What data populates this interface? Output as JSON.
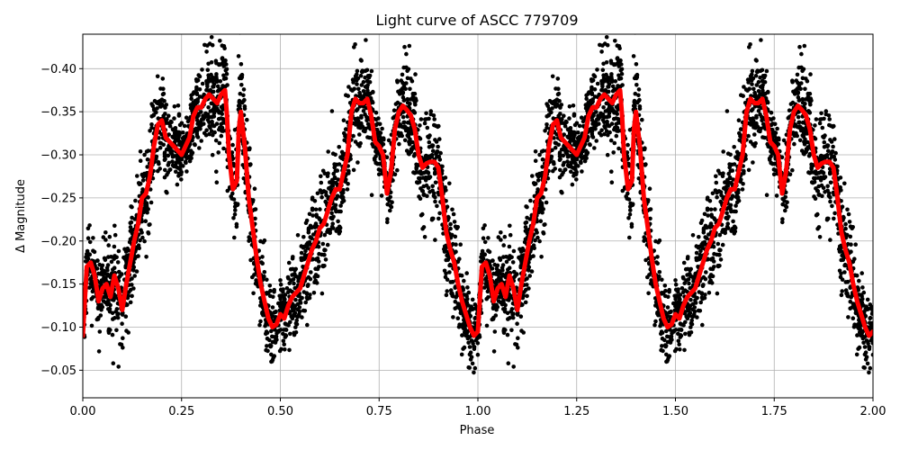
{
  "chart_data": {
    "type": "scatter",
    "title": "Light curve of ASCC 779709",
    "xlabel": "Phase",
    "ylabel": "Δ Magnitude",
    "xlim": [
      0.0,
      2.0
    ],
    "ylim": [
      -0.018,
      -0.44
    ],
    "y_inverted": true,
    "grid": true,
    "x_ticks": [
      "0.00",
      "0.25",
      "0.50",
      "0.75",
      "1.00",
      "1.25",
      "1.50",
      "1.75",
      "2.00"
    ],
    "y_ticks": [
      "−0.05",
      "−0.10",
      "−0.15",
      "−0.20",
      "−0.25",
      "−0.30",
      "−0.35",
      "−0.40"
    ],
    "series": [
      {
        "kind": "observations",
        "color": "#000000",
        "marker": "dot",
        "phase_period": 1.0,
        "note_repeat": "observations repeated for phases 1.00–2.00"
      },
      {
        "kind": "model",
        "color": "#ff0000",
        "x": [
          0.0,
          0.01,
          0.02,
          0.03,
          0.04,
          0.05,
          0.06,
          0.07,
          0.08,
          0.09,
          0.1,
          0.11,
          0.12,
          0.13,
          0.14,
          0.15,
          0.16,
          0.17,
          0.18,
          0.19,
          0.2,
          0.21,
          0.22,
          0.23,
          0.24,
          0.25,
          0.26,
          0.27,
          0.28,
          0.29,
          0.3,
          0.31,
          0.32,
          0.33,
          0.34,
          0.35,
          0.36,
          0.365,
          0.37,
          0.38,
          0.39,
          0.395,
          0.4,
          0.41,
          0.42,
          0.43,
          0.44,
          0.45,
          0.46,
          0.47,
          0.48,
          0.49,
          0.5,
          0.51,
          0.52,
          0.53,
          0.54,
          0.55,
          0.56,
          0.57,
          0.58,
          0.59,
          0.6,
          0.61,
          0.62,
          0.63,
          0.64,
          0.65,
          0.66,
          0.67,
          0.68,
          0.69,
          0.7,
          0.71,
          0.72,
          0.73,
          0.74,
          0.75,
          0.76,
          0.77,
          0.78,
          0.79,
          0.8,
          0.81,
          0.82,
          0.83,
          0.84,
          0.85,
          0.86,
          0.87,
          0.88,
          0.89,
          0.9,
          0.91,
          0.92,
          0.93,
          0.94,
          0.95,
          0.96,
          0.97,
          0.98,
          0.99,
          1.0
        ],
        "y": [
          -0.09,
          -0.17,
          -0.175,
          -0.16,
          -0.13,
          -0.145,
          -0.15,
          -0.135,
          -0.16,
          -0.145,
          -0.12,
          -0.15,
          -0.175,
          -0.2,
          -0.22,
          -0.25,
          -0.255,
          -0.275,
          -0.31,
          -0.335,
          -0.34,
          -0.32,
          -0.315,
          -0.31,
          -0.305,
          -0.3,
          -0.31,
          -0.32,
          -0.345,
          -0.355,
          -0.355,
          -0.365,
          -0.37,
          -0.365,
          -0.36,
          -0.37,
          -0.375,
          -0.345,
          -0.3,
          -0.26,
          -0.27,
          -0.33,
          -0.35,
          -0.31,
          -0.25,
          -0.215,
          -0.18,
          -0.15,
          -0.13,
          -0.11,
          -0.1,
          -0.103,
          -0.115,
          -0.11,
          -0.125,
          -0.135,
          -0.14,
          -0.145,
          -0.16,
          -0.175,
          -0.19,
          -0.2,
          -0.215,
          -0.22,
          -0.235,
          -0.25,
          -0.26,
          -0.26,
          -0.28,
          -0.3,
          -0.35,
          -0.365,
          -0.36,
          -0.36,
          -0.365,
          -0.345,
          -0.315,
          -0.31,
          -0.3,
          -0.255,
          -0.28,
          -0.33,
          -0.35,
          -0.357,
          -0.352,
          -0.346,
          -0.33,
          -0.3,
          -0.285,
          -0.29,
          -0.292,
          -0.292,
          -0.285,
          -0.25,
          -0.21,
          -0.19,
          -0.175,
          -0.15,
          -0.13,
          -0.115,
          -0.1,
          -0.09,
          -0.095
        ]
      }
    ]
  }
}
